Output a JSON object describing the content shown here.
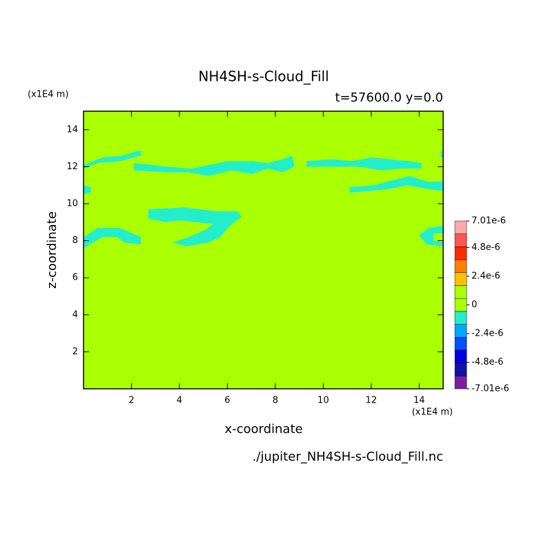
{
  "chart_data": {
    "type": "contour",
    "title": "NH4SH-s-Cloud_Fill",
    "subtitle": "t=57600.0 y=0.0",
    "x_label": "x-coordinate",
    "y_label": "z-coordinate",
    "x_unit": "(x1E4 m)",
    "y_unit": "(x1E4 m)",
    "file_name": "./jupiter_NH4SH-s-Cloud_Fill.nc",
    "xlim": [
      0,
      15
    ],
    "ylim": [
      0,
      15
    ],
    "xticks": [
      2,
      4,
      6,
      8,
      10,
      12,
      14
    ],
    "yticks": [
      2,
      4,
      6,
      8,
      10,
      12,
      14
    ],
    "background_value": 0,
    "regions": [
      {
        "value": -1.2e-06,
        "points": [
          [
            0,
            12.1
          ],
          [
            0.8,
            12.5
          ],
          [
            1.6,
            12.6
          ],
          [
            2.4,
            12.9
          ],
          [
            2.4,
            12.6
          ],
          [
            1.5,
            12.3
          ],
          [
            0.6,
            12.2
          ],
          [
            0,
            11.9
          ]
        ]
      },
      {
        "value": -1.2e-06,
        "points": [
          [
            2.1,
            12.2
          ],
          [
            3.5,
            12.0
          ],
          [
            4.5,
            11.9
          ],
          [
            6,
            12.3
          ],
          [
            7,
            12.3
          ],
          [
            7.7,
            12.2
          ],
          [
            8.3,
            12.4
          ],
          [
            8.7,
            12.6
          ],
          [
            8.8,
            12.0
          ],
          [
            8.3,
            11.7
          ],
          [
            7.7,
            11.9
          ],
          [
            7,
            11.6
          ],
          [
            6.2,
            11.8
          ],
          [
            5.2,
            11.5
          ],
          [
            4.4,
            11.7
          ],
          [
            3.5,
            11.7
          ],
          [
            2.1,
            11.8
          ]
        ]
      },
      {
        "value": -1.2e-06,
        "points": [
          [
            9.3,
            12.3
          ],
          [
            10.4,
            12.4
          ],
          [
            11.2,
            12.3
          ],
          [
            12,
            12.5
          ],
          [
            12.8,
            12.4
          ],
          [
            13.6,
            12.3
          ],
          [
            14.1,
            12.2
          ],
          [
            14.1,
            11.9
          ],
          [
            13.3,
            11.9
          ],
          [
            12.4,
            11.8
          ],
          [
            11.5,
            12.0
          ],
          [
            10.5,
            12.0
          ],
          [
            9.3,
            12.0
          ]
        ]
      },
      {
        "value": -1.2e-06,
        "points": [
          [
            11.1,
            10.9
          ],
          [
            12.1,
            11.0
          ],
          [
            13,
            11.3
          ],
          [
            13.6,
            11.5
          ],
          [
            14.3,
            11.2
          ],
          [
            15,
            11.2
          ],
          [
            15,
            10.7
          ],
          [
            14.3,
            10.8
          ],
          [
            13.5,
            11.0
          ],
          [
            12.8,
            10.8
          ],
          [
            12,
            10.7
          ],
          [
            11.1,
            10.6
          ]
        ]
      },
      {
        "value": -1.2e-06,
        "points": [
          [
            0,
            11
          ],
          [
            0.3,
            10.9
          ],
          [
            0.3,
            10.6
          ],
          [
            0,
            10.5
          ]
        ]
      },
      {
        "value": -1.2e-06,
        "points": [
          [
            2.7,
            9.7
          ],
          [
            4.2,
            9.8
          ],
          [
            5.5,
            9.6
          ],
          [
            6.4,
            9.6
          ],
          [
            6.6,
            9.3
          ],
          [
            6.1,
            8.8
          ],
          [
            5.7,
            8.2
          ],
          [
            5.2,
            7.9
          ],
          [
            4.3,
            7.7
          ],
          [
            3.7,
            7.9
          ],
          [
            4.4,
            8.2
          ],
          [
            5.1,
            8.6
          ],
          [
            5.4,
            8.9
          ],
          [
            4.7,
            9.0
          ],
          [
            4.0,
            9.1
          ],
          [
            3.4,
            9.0
          ],
          [
            2.7,
            9.2
          ]
        ]
      },
      {
        "value": -1.2e-06,
        "points": [
          [
            0,
            8.2
          ],
          [
            0.6,
            8.7
          ],
          [
            1.5,
            8.7
          ],
          [
            2.4,
            8.2
          ],
          [
            2.4,
            7.8
          ],
          [
            1.7,
            7.9
          ],
          [
            1.4,
            8.2
          ],
          [
            0.8,
            8.2
          ],
          [
            0.4,
            7.9
          ],
          [
            0,
            7.6
          ]
        ]
      },
      {
        "value": -1.2e-06,
        "points": [
          [
            14,
            8.3
          ],
          [
            14.4,
            8.7
          ],
          [
            15,
            8.8
          ],
          [
            15,
            8.4
          ],
          [
            14.6,
            8.4
          ],
          [
            14.6,
            8.0
          ],
          [
            15,
            7.9
          ],
          [
            15,
            7.7
          ],
          [
            14.3,
            7.8
          ]
        ]
      },
      {
        "value": -1.2e-06,
        "points": [
          [
            14.9,
            12.8
          ],
          [
            15,
            12.9
          ],
          [
            15,
            12.5
          ],
          [
            14.9,
            12.5
          ]
        ]
      }
    ],
    "colorbar": {
      "lim": [
        -7.01e-06,
        7.01e-06
      ],
      "ticks": [
        {
          "value": 7.01e-06,
          "label": "7.01e-6"
        },
        {
          "value": 4.8e-06,
          "label": "4.8e-6"
        },
        {
          "value": 2.4e-06,
          "label": "2.4e-6"
        },
        0,
        {
          "value": -2.4e-06,
          "label": "-2.4e-6"
        },
        {
          "value": -4.8e-06,
          "label": "-4.8e-6"
        },
        {
          "value": -7.01e-06,
          "label": "-7.01e-6"
        }
      ],
      "colors": [
        "#7a1fa2",
        "#1010a8",
        "#0000e0",
        "#0050ff",
        "#00a8ff",
        "#22eecc",
        "#aaff00",
        "#aaff00",
        "#ffc000",
        "#ff8000",
        "#ff2a00",
        "#ff5555",
        "#ffaaaa"
      ]
    }
  }
}
